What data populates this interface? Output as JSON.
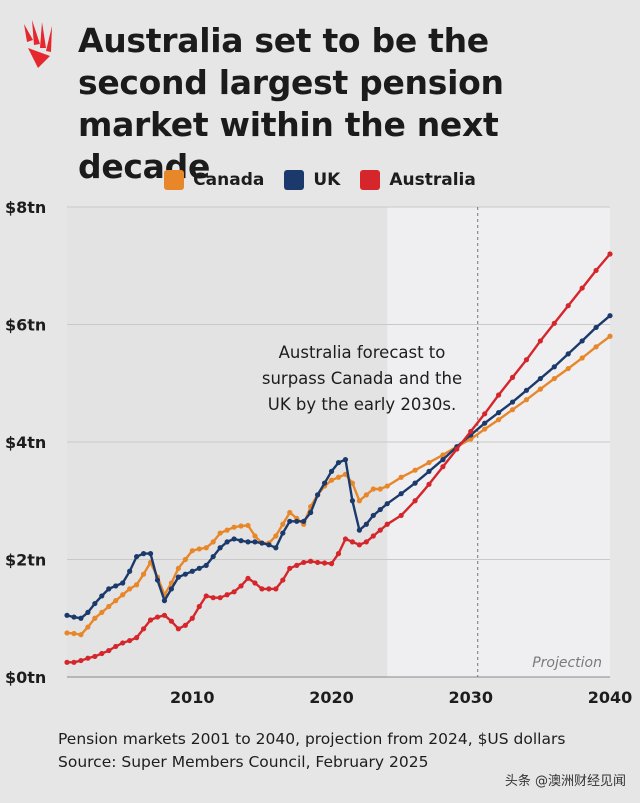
{
  "header": {
    "title": "Australia set to be the second largest pension market within the next decade"
  },
  "chart_data": {
    "type": "line",
    "ylabel": "",
    "xlabel": "",
    "x_range": [
      2001,
      2040
    ],
    "ylim": [
      0,
      8
    ],
    "y_ticks": [
      {
        "value": 0,
        "label": "$0tn"
      },
      {
        "value": 2,
        "label": "$2tn"
      },
      {
        "value": 4,
        "label": "$4tn"
      },
      {
        "value": 6,
        "label": "$6tn"
      },
      {
        "value": 8,
        "label": "$8tn"
      }
    ],
    "x_ticks": [
      {
        "value": 2010,
        "label": "2010"
      },
      {
        "value": 2020,
        "label": "2020"
      },
      {
        "value": 2030,
        "label": "2030"
      },
      {
        "value": 2040,
        "label": "2040"
      }
    ],
    "grid": "horizontal",
    "legend_position": "top",
    "projection": {
      "from": 2024,
      "label": "Projection"
    },
    "marker_line_x": 2030.5,
    "annotation": {
      "lines": [
        "Australia forecast to",
        "surpass Canada and the",
        "UK by the early 2030s."
      ]
    },
    "series": [
      {
        "name": "Canada",
        "color": "#e8862a",
        "points": [
          [
            2001,
            0.75
          ],
          [
            2001.5,
            0.74
          ],
          [
            2002,
            0.72
          ],
          [
            2002.5,
            0.85
          ],
          [
            2003,
            1.0
          ],
          [
            2003.5,
            1.1
          ],
          [
            2004,
            1.2
          ],
          [
            2004.5,
            1.3
          ],
          [
            2005,
            1.4
          ],
          [
            2005.5,
            1.5
          ],
          [
            2006,
            1.57
          ],
          [
            2006.5,
            1.75
          ],
          [
            2007,
            1.95
          ],
          [
            2007.5,
            1.7
          ],
          [
            2008,
            1.4
          ],
          [
            2008.5,
            1.6
          ],
          [
            2009,
            1.85
          ],
          [
            2009.5,
            2.0
          ],
          [
            2010,
            2.15
          ],
          [
            2010.5,
            2.18
          ],
          [
            2011,
            2.2
          ],
          [
            2011.5,
            2.3
          ],
          [
            2012,
            2.45
          ],
          [
            2012.5,
            2.5
          ],
          [
            2013,
            2.55
          ],
          [
            2013.5,
            2.57
          ],
          [
            2014,
            2.58
          ],
          [
            2014.5,
            2.4
          ],
          [
            2015,
            2.28
          ],
          [
            2015.5,
            2.28
          ],
          [
            2016,
            2.4
          ],
          [
            2016.5,
            2.6
          ],
          [
            2017,
            2.8
          ],
          [
            2017.5,
            2.7
          ],
          [
            2018,
            2.6
          ],
          [
            2018.5,
            2.9
          ],
          [
            2019,
            3.1
          ],
          [
            2019.5,
            3.25
          ],
          [
            2020,
            3.35
          ],
          [
            2020.5,
            3.4
          ],
          [
            2021,
            3.45
          ],
          [
            2021.5,
            3.3
          ],
          [
            2022,
            3.0
          ],
          [
            2022.5,
            3.1
          ],
          [
            2023,
            3.2
          ],
          [
            2023.5,
            3.2
          ],
          [
            2024,
            3.25
          ],
          [
            2025,
            3.4
          ],
          [
            2026,
            3.52
          ],
          [
            2027,
            3.65
          ],
          [
            2028,
            3.78
          ],
          [
            2029,
            3.92
          ],
          [
            2030,
            4.05
          ],
          [
            2031,
            4.22
          ],
          [
            2032,
            4.38
          ],
          [
            2033,
            4.55
          ],
          [
            2034,
            4.72
          ],
          [
            2035,
            4.9
          ],
          [
            2036,
            5.08
          ],
          [
            2037,
            5.25
          ],
          [
            2038,
            5.43
          ],
          [
            2039,
            5.62
          ],
          [
            2040,
            5.8
          ]
        ]
      },
      {
        "name": "UK",
        "color": "#1b3a6b",
        "points": [
          [
            2001,
            1.05
          ],
          [
            2001.5,
            1.02
          ],
          [
            2002,
            1.0
          ],
          [
            2002.5,
            1.1
          ],
          [
            2003,
            1.25
          ],
          [
            2003.5,
            1.38
          ],
          [
            2004,
            1.5
          ],
          [
            2004.5,
            1.55
          ],
          [
            2005,
            1.6
          ],
          [
            2005.5,
            1.8
          ],
          [
            2006,
            2.05
          ],
          [
            2006.5,
            2.1
          ],
          [
            2007,
            2.1
          ],
          [
            2007.5,
            1.65
          ],
          [
            2008,
            1.3
          ],
          [
            2008.5,
            1.5
          ],
          [
            2009,
            1.7
          ],
          [
            2009.5,
            1.75
          ],
          [
            2010,
            1.8
          ],
          [
            2010.5,
            1.85
          ],
          [
            2011,
            1.9
          ],
          [
            2011.5,
            2.05
          ],
          [
            2012,
            2.2
          ],
          [
            2012.5,
            2.3
          ],
          [
            2013,
            2.35
          ],
          [
            2013.5,
            2.32
          ],
          [
            2014,
            2.3
          ],
          [
            2014.5,
            2.3
          ],
          [
            2015,
            2.28
          ],
          [
            2015.5,
            2.25
          ],
          [
            2016,
            2.2
          ],
          [
            2016.5,
            2.45
          ],
          [
            2017,
            2.65
          ],
          [
            2017.5,
            2.65
          ],
          [
            2018,
            2.65
          ],
          [
            2018.5,
            2.8
          ],
          [
            2019,
            3.1
          ],
          [
            2019.5,
            3.3
          ],
          [
            2020,
            3.5
          ],
          [
            2020.5,
            3.65
          ],
          [
            2021,
            3.7
          ],
          [
            2021.5,
            3.0
          ],
          [
            2022,
            2.5
          ],
          [
            2022.5,
            2.6
          ],
          [
            2023,
            2.75
          ],
          [
            2023.5,
            2.85
          ],
          [
            2024,
            2.95
          ],
          [
            2025,
            3.12
          ],
          [
            2026,
            3.3
          ],
          [
            2027,
            3.5
          ],
          [
            2028,
            3.7
          ],
          [
            2029,
            3.92
          ],
          [
            2030,
            4.12
          ],
          [
            2031,
            4.32
          ],
          [
            2032,
            4.5
          ],
          [
            2033,
            4.68
          ],
          [
            2034,
            4.88
          ],
          [
            2035,
            5.08
          ],
          [
            2036,
            5.28
          ],
          [
            2037,
            5.5
          ],
          [
            2038,
            5.72
          ],
          [
            2039,
            5.95
          ],
          [
            2040,
            6.15
          ]
        ]
      },
      {
        "name": "Australia",
        "color": "#d4262b",
        "points": [
          [
            2001,
            0.25
          ],
          [
            2001.5,
            0.25
          ],
          [
            2002,
            0.28
          ],
          [
            2002.5,
            0.32
          ],
          [
            2003,
            0.35
          ],
          [
            2003.5,
            0.4
          ],
          [
            2004,
            0.45
          ],
          [
            2004.5,
            0.52
          ],
          [
            2005,
            0.58
          ],
          [
            2005.5,
            0.62
          ],
          [
            2006,
            0.67
          ],
          [
            2006.5,
            0.82
          ],
          [
            2007,
            0.97
          ],
          [
            2007.5,
            1.02
          ],
          [
            2008,
            1.05
          ],
          [
            2008.5,
            0.95
          ],
          [
            2009,
            0.82
          ],
          [
            2009.5,
            0.88
          ],
          [
            2010,
            1.0
          ],
          [
            2010.5,
            1.2
          ],
          [
            2011,
            1.38
          ],
          [
            2011.5,
            1.35
          ],
          [
            2012,
            1.35
          ],
          [
            2012.5,
            1.4
          ],
          [
            2013,
            1.45
          ],
          [
            2013.5,
            1.55
          ],
          [
            2014,
            1.68
          ],
          [
            2014.5,
            1.6
          ],
          [
            2015,
            1.5
          ],
          [
            2015.5,
            1.5
          ],
          [
            2016,
            1.5
          ],
          [
            2016.5,
            1.65
          ],
          [
            2017,
            1.85
          ],
          [
            2017.5,
            1.9
          ],
          [
            2018,
            1.95
          ],
          [
            2018.5,
            1.97
          ],
          [
            2019,
            1.95
          ],
          [
            2019.5,
            1.94
          ],
          [
            2020,
            1.93
          ],
          [
            2020.5,
            2.1
          ],
          [
            2021,
            2.35
          ],
          [
            2021.5,
            2.3
          ],
          [
            2022,
            2.25
          ],
          [
            2022.5,
            2.3
          ],
          [
            2023,
            2.4
          ],
          [
            2023.5,
            2.5
          ],
          [
            2024,
            2.6
          ],
          [
            2025,
            2.75
          ],
          [
            2026,
            3.0
          ],
          [
            2027,
            3.28
          ],
          [
            2028,
            3.58
          ],
          [
            2029,
            3.88
          ],
          [
            2030,
            4.18
          ],
          [
            2031,
            4.48
          ],
          [
            2032,
            4.8
          ],
          [
            2033,
            5.1
          ],
          [
            2034,
            5.4
          ],
          [
            2035,
            5.72
          ],
          [
            2036,
            6.02
          ],
          [
            2037,
            6.32
          ],
          [
            2038,
            6.62
          ],
          [
            2039,
            6.92
          ],
          [
            2040,
            7.2
          ]
        ]
      }
    ]
  },
  "footer": {
    "line1": "Pension markets 2001 to 2040, projection from 2024, $US dollars",
    "line2": "Source: Super Members Council, February 2025"
  },
  "watermark": "头条 @澳洲财经见闻",
  "colors": {
    "background": "#e6e6e6",
    "plot_history": "#e3e3e3",
    "plot_projection": "#efeff1",
    "logo_red": "#e4282e"
  }
}
